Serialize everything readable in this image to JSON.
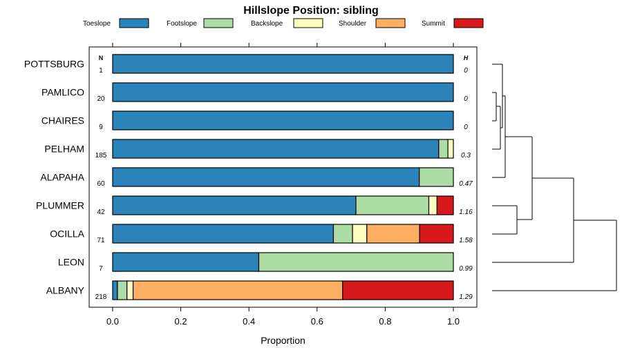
{
  "chart_data": {
    "type": "bar",
    "stacked": true,
    "orientation": "horizontal",
    "title": "Hillslope Position: sibling",
    "xlabel": "Proportion",
    "ylabel": "",
    "xlim": [
      0,
      1
    ],
    "xticks": [
      "0.0",
      "0.2",
      "0.4",
      "0.6",
      "0.8",
      "1.0"
    ],
    "n_header": "N",
    "h_header": "H",
    "legend_position": "top",
    "series": [
      {
        "name": "Toeslope",
        "color": "#2b83ba"
      },
      {
        "name": "Footslope",
        "color": "#abdda4"
      },
      {
        "name": "Backslope",
        "color": "#ffffbf"
      },
      {
        "name": "Shoulder",
        "color": "#fdae61"
      },
      {
        "name": "Summit",
        "color": "#d7191c"
      }
    ],
    "categories": [
      "POTTSBURG",
      "PAMLICO",
      "CHAIRES",
      "PELHAM",
      "ALAPAHA",
      "PLUMMER",
      "OCILLA",
      "LEON",
      "ALBANY"
    ],
    "n": [
      "1",
      "20",
      "9",
      "185",
      "60",
      "42",
      "71",
      "7",
      "218"
    ],
    "h": [
      "0",
      "0",
      "0",
      "0.3",
      "0.47",
      "1.16",
      "1.58",
      "0.99",
      "1.29"
    ],
    "values": [
      [
        1.0,
        0.0,
        0.0,
        0.0,
        0.0
      ],
      [
        1.0,
        0.0,
        0.0,
        0.0,
        0.0
      ],
      [
        1.0,
        0.0,
        0.0,
        0.0,
        0.0
      ],
      [
        0.957,
        0.027,
        0.016,
        0.0,
        0.0
      ],
      [
        0.9,
        0.1,
        0.0,
        0.0,
        0.0
      ],
      [
        0.714,
        0.214,
        0.024,
        0.0,
        0.048
      ],
      [
        0.648,
        0.056,
        0.042,
        0.155,
        0.099
      ],
      [
        0.429,
        0.571,
        0.0,
        0.0,
        0.0
      ],
      [
        0.014,
        0.028,
        0.018,
        0.615,
        0.325
      ]
    ],
    "dendrogram": true
  }
}
